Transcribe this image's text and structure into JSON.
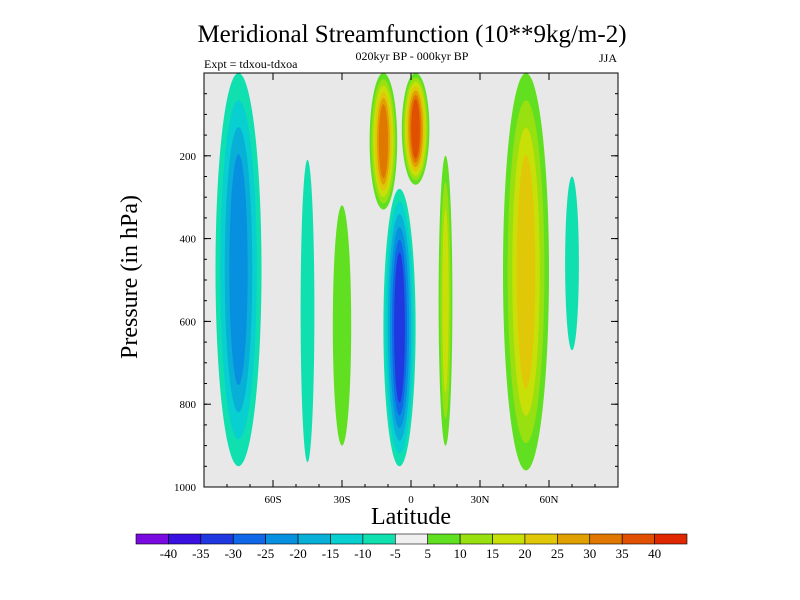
{
  "chart_data": {
    "type": "heatmap",
    "title": "Meridional Streamfunction (10**9kg/m-2)",
    "subtitle": "020kyr BP - 000kyr BP",
    "season": "JJA",
    "experiment": "Expt = tdxou-tdxoa",
    "xlabel": "Latitude",
    "ylabel": "Pressure (in hPa)",
    "xlim": [
      -90,
      90
    ],
    "ylim": [
      1000,
      0
    ],
    "x_ticks": [
      {
        "value": -60,
        "label": "60S"
      },
      {
        "value": -30,
        "label": "30S"
      },
      {
        "value": 0,
        "label": "0"
      },
      {
        "value": 30,
        "label": "30N"
      },
      {
        "value": 60,
        "label": "60N"
      }
    ],
    "y_ticks": [
      {
        "value": 200,
        "label": "200"
      },
      {
        "value": 400,
        "label": "400"
      },
      {
        "value": 600,
        "label": "600"
      },
      {
        "value": 800,
        "label": "800"
      },
      {
        "value": 1000,
        "label": "1000"
      }
    ],
    "background_color": "#e8e8e8",
    "colorbar": {
      "labels": [
        "-40",
        "-35",
        "-30",
        "-25",
        "-20",
        "-15",
        "-10",
        "-5",
        "5",
        "10",
        "15",
        "20",
        "25",
        "30",
        "35",
        "40"
      ],
      "colors": [
        "#7a0be0",
        "#3810e0",
        "#2038e0",
        "#1068e8",
        "#0890e0",
        "#08b0d8",
        "#08d0d0",
        "#10e0b0",
        "#f0f0f0",
        "#60e020",
        "#98e010",
        "#c8e008",
        "#e0c808",
        "#e0a000",
        "#e07800",
        "#e05000",
        "#e02800"
      ]
    },
    "contour_levels": [
      -40,
      -35,
      -30,
      -25,
      -20,
      -15,
      -10,
      -5,
      5,
      10,
      15,
      20,
      25,
      30,
      35,
      40
    ],
    "features": [
      {
        "lat": -75,
        "lat_width": 10,
        "p_top": 0,
        "p_bottom": 950,
        "values": [
          -10,
          -15,
          -20,
          -25
        ]
      },
      {
        "lat": -45,
        "lat_width": 3,
        "p_top": 210,
        "p_bottom": 940,
        "values": [
          -10
        ]
      },
      {
        "lat": -30,
        "lat_width": 4,
        "p_top": 320,
        "p_bottom": 900,
        "values": [
          5
        ]
      },
      {
        "lat": -12,
        "lat_width": 6,
        "p_top": 0,
        "p_bottom": 330,
        "values": [
          5,
          10,
          15,
          20,
          25,
          30
        ]
      },
      {
        "lat": 2,
        "lat_width": 6,
        "p_top": 0,
        "p_bottom": 270,
        "values": [
          5,
          10,
          15,
          20,
          25,
          30,
          35
        ]
      },
      {
        "lat": -5,
        "lat_width": 7,
        "p_top": 280,
        "p_bottom": 950,
        "values": [
          -10,
          -15,
          -20,
          -25,
          -30,
          -35
        ]
      },
      {
        "lat": 15,
        "lat_width": 3,
        "p_top": 200,
        "p_bottom": 900,
        "values": [
          5,
          10,
          15
        ]
      },
      {
        "lat": 50,
        "lat_width": 10,
        "p_top": 0,
        "p_bottom": 960,
        "values": [
          5,
          10,
          15,
          20
        ]
      },
      {
        "lat": 70,
        "lat_width": 3,
        "p_top": 250,
        "p_bottom": 670,
        "values": [
          -10
        ]
      }
    ]
  }
}
